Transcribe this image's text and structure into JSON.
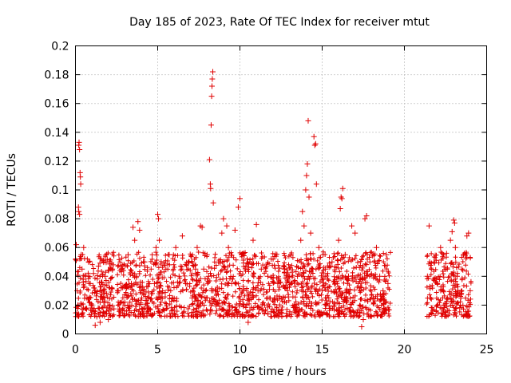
{
  "chart_data": {
    "type": "scatter",
    "title": "Day 185 of 2023, Rate Of TEC Index for receiver mtut",
    "xlabel": "GPS time / hours",
    "ylabel": "ROTI / TECUs",
    "xlim": [
      0,
      25
    ],
    "ylim": [
      0,
      0.2
    ],
    "x_ticks": [
      {
        "value": 0,
        "label": "0"
      },
      {
        "value": 5,
        "label": "5"
      },
      {
        "value": 10,
        "label": "10"
      },
      {
        "value": 15,
        "label": "15"
      },
      {
        "value": 20,
        "label": "20"
      },
      {
        "value": 25,
        "label": "25"
      }
    ],
    "y_ticks": [
      {
        "value": 0,
        "label": "0"
      },
      {
        "value": 0.02,
        "label": "0.02"
      },
      {
        "value": 0.04,
        "label": "0.04"
      },
      {
        "value": 0.06,
        "label": "0.06"
      },
      {
        "value": 0.08,
        "label": "0.08"
      },
      {
        "value": 0.1,
        "label": "0.1"
      },
      {
        "value": 0.12,
        "label": "0.12"
      },
      {
        "value": 0.14,
        "label": "0.14"
      },
      {
        "value": 0.16,
        "label": "0.16"
      },
      {
        "value": 0.18,
        "label": "0.18"
      },
      {
        "value": 0.2,
        "label": "0.2"
      }
    ],
    "grid": true,
    "marker": "plus",
    "marker_color": "#e00000",
    "series": [
      {
        "points": [
          [
            0.05,
            0.062
          ],
          [
            0.1,
            0.03
          ],
          [
            0.15,
            0.02
          ],
          [
            0.2,
            0.131
          ],
          [
            0.22,
            0.133
          ],
          [
            0.25,
            0.128
          ],
          [
            0.28,
            0.112
          ],
          [
            0.3,
            0.109
          ],
          [
            0.32,
            0.104
          ],
          [
            0.18,
            0.088
          ],
          [
            0.2,
            0.085
          ],
          [
            0.25,
            0.083
          ],
          [
            0.35,
            0.055
          ],
          [
            0.4,
            0.045
          ],
          [
            0.5,
            0.06
          ],
          [
            0.6,
            0.04
          ],
          [
            0.7,
            0.025
          ],
          [
            0.8,
            0.05
          ],
          [
            0.9,
            0.035
          ],
          [
            1.0,
            0.018
          ],
          [
            1.1,
            0.042
          ],
          [
            1.2,
            0.03
          ],
          [
            1.3,
            0.012
          ],
          [
            1.4,
            0.047
          ],
          [
            1.5,
            0.022
          ],
          [
            1.6,
            0.036
          ],
          [
            1.7,
            0.015
          ],
          [
            1.8,
            0.04
          ],
          [
            1.9,
            0.028
          ],
          [
            2.0,
            0.044
          ],
          [
            2.1,
            0.02
          ],
          [
            2.2,
            0.032
          ],
          [
            2.3,
            0.048
          ],
          [
            2.0,
            0.01
          ],
          [
            1.5,
            0.008
          ],
          [
            1.2,
            0.006
          ],
          [
            2.6,
            0.03
          ],
          [
            2.8,
            0.045
          ],
          [
            3.0,
            0.022
          ],
          [
            3.2,
            0.055
          ],
          [
            3.4,
            0.035
          ],
          [
            3.5,
            0.074
          ],
          [
            3.6,
            0.065
          ],
          [
            3.7,
            0.04
          ],
          [
            3.8,
            0.078
          ],
          [
            3.9,
            0.072
          ],
          [
            4.0,
            0.03
          ],
          [
            4.2,
            0.05
          ],
          [
            4.4,
            0.025
          ],
          [
            4.6,
            0.045
          ],
          [
            4.8,
            0.035
          ],
          [
            4.9,
            0.06
          ],
          [
            5.0,
            0.083
          ],
          [
            5.05,
            0.08
          ],
          [
            5.1,
            0.065
          ],
          [
            5.3,
            0.03
          ],
          [
            5.5,
            0.045
          ],
          [
            5.7,
            0.055
          ],
          [
            5.9,
            0.025
          ],
          [
            6.1,
            0.06
          ],
          [
            6.3,
            0.04
          ],
          [
            6.5,
            0.068
          ],
          [
            6.7,
            0.035
          ],
          [
            6.9,
            0.05
          ],
          [
            7.1,
            0.025
          ],
          [
            7.3,
            0.045
          ],
          [
            7.4,
            0.06
          ],
          [
            7.6,
            0.075
          ],
          [
            7.7,
            0.074
          ],
          [
            7.8,
            0.045
          ],
          [
            7.9,
            0.03
          ],
          [
            8.0,
            0.055
          ],
          [
            8.1,
            0.04
          ],
          [
            8.15,
            0.121
          ],
          [
            8.2,
            0.104
          ],
          [
            8.22,
            0.101
          ],
          [
            8.25,
            0.145
          ],
          [
            8.28,
            0.165
          ],
          [
            8.3,
            0.172
          ],
          [
            8.32,
            0.177
          ],
          [
            8.35,
            0.182
          ],
          [
            8.38,
            0.091
          ],
          [
            8.5,
            0.03
          ],
          [
            8.7,
            0.05
          ],
          [
            8.9,
            0.07
          ],
          [
            9.0,
            0.08
          ],
          [
            9.1,
            0.045
          ],
          [
            9.2,
            0.075
          ],
          [
            9.3,
            0.06
          ],
          [
            9.5,
            0.035
          ],
          [
            9.7,
            0.072
          ],
          [
            9.9,
            0.088
          ],
          [
            10.0,
            0.094
          ],
          [
            10.1,
            0.055
          ],
          [
            10.2,
            0.03
          ],
          [
            10.4,
            0.015
          ],
          [
            10.5,
            0.008
          ],
          [
            10.6,
            0.05
          ],
          [
            10.8,
            0.065
          ],
          [
            11.0,
            0.076
          ],
          [
            11.1,
            0.03
          ],
          [
            11.3,
            0.045
          ],
          [
            11.5,
            0.02
          ],
          [
            11.7,
            0.04
          ],
          [
            11.9,
            0.052
          ],
          [
            12.1,
            0.025
          ],
          [
            12.3,
            0.035
          ],
          [
            12.5,
            0.015
          ],
          [
            12.7,
            0.045
          ],
          [
            12.9,
            0.03
          ],
          [
            13.1,
            0.055
          ],
          [
            13.3,
            0.02
          ],
          [
            13.5,
            0.04
          ],
          [
            13.7,
            0.065
          ],
          [
            13.8,
            0.085
          ],
          [
            13.9,
            0.075
          ],
          [
            14.0,
            0.1
          ],
          [
            14.05,
            0.11
          ],
          [
            14.1,
            0.118
          ],
          [
            14.15,
            0.148
          ],
          [
            14.2,
            0.095
          ],
          [
            14.3,
            0.07
          ],
          [
            14.4,
            0.045
          ],
          [
            14.5,
            0.137
          ],
          [
            14.55,
            0.131
          ],
          [
            14.6,
            0.132
          ],
          [
            14.65,
            0.104
          ],
          [
            14.8,
            0.06
          ],
          [
            15.0,
            0.03
          ],
          [
            15.2,
            0.045
          ],
          [
            15.4,
            0.025
          ],
          [
            15.6,
            0.05
          ],
          [
            15.8,
            0.035
          ],
          [
            16.0,
            0.065
          ],
          [
            16.1,
            0.087
          ],
          [
            16.15,
            0.095
          ],
          [
            16.2,
            0.094
          ],
          [
            16.25,
            0.101
          ],
          [
            16.4,
            0.055
          ],
          [
            16.6,
            0.04
          ],
          [
            16.8,
            0.075
          ],
          [
            17.0,
            0.07
          ],
          [
            17.2,
            0.035
          ],
          [
            17.3,
            0.015
          ],
          [
            17.4,
            0.005
          ],
          [
            17.5,
            0.01
          ],
          [
            17.6,
            0.08
          ],
          [
            17.7,
            0.082
          ],
          [
            17.9,
            0.05
          ],
          [
            18.1,
            0.025
          ],
          [
            18.3,
            0.06
          ],
          [
            18.5,
            0.04
          ],
          [
            18.7,
            0.03
          ],
          [
            18.9,
            0.055
          ],
          [
            19.0,
            0.035
          ],
          [
            21.4,
            0.04
          ],
          [
            21.5,
            0.075
          ],
          [
            21.6,
            0.025
          ],
          [
            21.8,
            0.05
          ],
          [
            22.0,
            0.035
          ],
          [
            22.2,
            0.06
          ],
          [
            22.4,
            0.02
          ],
          [
            22.6,
            0.045
          ],
          [
            22.8,
            0.065
          ],
          [
            22.9,
            0.071
          ],
          [
            23.0,
            0.079
          ],
          [
            23.05,
            0.077
          ],
          [
            23.1,
            0.06
          ],
          [
            23.2,
            0.04
          ],
          [
            23.4,
            0.02
          ],
          [
            23.5,
            0.045
          ],
          [
            23.6,
            0.055
          ],
          [
            23.8,
            0.068
          ],
          [
            23.9,
            0.07
          ],
          [
            24.0,
            0.03
          ]
        ]
      }
    ]
  }
}
